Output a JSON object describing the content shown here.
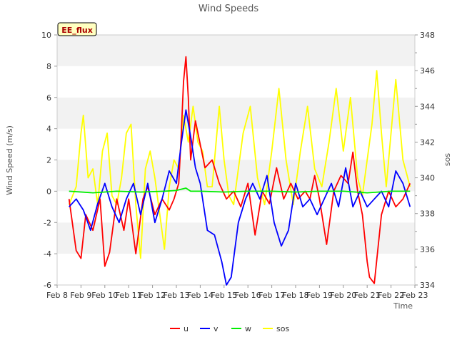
{
  "chart_data": {
    "type": "line",
    "title": "Wind Speeds",
    "xlabel": "Time",
    "ylabel": "Wind Speed (m/s)",
    "y2label": "sos",
    "badge": "EE_flux",
    "x_ticks": [
      "Feb 8",
      "Feb 9",
      "Feb 10",
      "Feb 11",
      "Feb 12",
      "Feb 13",
      "Feb 14",
      "Feb 15",
      "Feb 16",
      "Feb 17",
      "Feb 18",
      "Feb 19",
      "Feb 20",
      "Feb 21",
      "Feb 22",
      "Feb 23"
    ],
    "xlim": [
      8,
      23
    ],
    "ylim": [
      -6,
      10
    ],
    "y_ticks": [
      -6,
      -4,
      -2,
      0,
      2,
      4,
      6,
      8,
      10
    ],
    "y2lim": [
      334,
      348
    ],
    "y2_ticks": [
      334,
      336,
      338,
      340,
      342,
      344,
      346,
      348
    ],
    "grid": "horizontal bands",
    "legend": "bottom-center",
    "series": [
      {
        "name": "u",
        "axis": "left",
        "color": "#ff0000",
        "x": [
          8.5,
          8.8,
          9.0,
          9.2,
          9.5,
          9.8,
          10.0,
          10.2,
          10.5,
          10.8,
          11.0,
          11.3,
          11.6,
          11.8,
          12.1,
          12.4,
          12.7,
          12.9,
          13.1,
          13.2,
          13.3,
          13.4,
          13.5,
          13.6,
          13.8,
          14.0,
          14.2,
          14.5,
          14.8,
          15.1,
          15.4,
          15.7,
          16.0,
          16.3,
          16.6,
          16.9,
          17.2,
          17.5,
          17.8,
          18.1,
          18.4,
          18.6,
          18.8,
          19.0,
          19.3,
          19.6,
          19.9,
          20.2,
          20.4,
          20.6,
          20.8,
          20.9,
          21.0,
          21.1,
          21.3,
          21.6,
          21.9,
          22.2,
          22.5,
          22.8
        ],
        "y": [
          -0.5,
          -3.8,
          -4.3,
          -1.5,
          -2.5,
          -0.5,
          -4.8,
          -3.9,
          -0.5,
          -2.5,
          -0.5,
          -4.0,
          -0.5,
          0.3,
          -1.5,
          -0.5,
          -1.2,
          -0.5,
          0.5,
          3.5,
          7.0,
          8.6,
          6.0,
          2.0,
          4.5,
          3.0,
          1.5,
          2.0,
          0.5,
          -0.5,
          0.0,
          -1.0,
          0.5,
          -2.8,
          0.0,
          -0.8,
          1.5,
          -0.5,
          0.5,
          -0.5,
          0.0,
          -0.5,
          1.0,
          -0.5,
          -3.4,
          0.0,
          1.0,
          0.5,
          2.5,
          0.0,
          -1.5,
          -3.0,
          -4.5,
          -5.5,
          -5.9,
          -1.5,
          0.0,
          -1.0,
          -0.5,
          0.5
        ]
      },
      {
        "name": "v",
        "axis": "left",
        "color": "#0000ff",
        "x": [
          8.5,
          8.8,
          9.1,
          9.4,
          9.7,
          10.0,
          10.3,
          10.6,
          10.9,
          11.2,
          11.5,
          11.8,
          12.1,
          12.4,
          12.7,
          13.0,
          13.2,
          13.4,
          13.6,
          13.8,
          14.0,
          14.3,
          14.6,
          14.9,
          15.1,
          15.3,
          15.6,
          15.9,
          16.2,
          16.5,
          16.8,
          17.1,
          17.4,
          17.7,
          18.0,
          18.3,
          18.6,
          18.9,
          19.2,
          19.5,
          19.8,
          20.1,
          20.4,
          20.7,
          21.0,
          21.3,
          21.6,
          21.9,
          22.2,
          22.5,
          22.8
        ],
        "y": [
          -1.0,
          -0.5,
          -1.2,
          -2.5,
          -0.8,
          0.5,
          -1.0,
          -2.0,
          -0.5,
          0.5,
          -1.5,
          0.5,
          -2.0,
          -0.5,
          1.3,
          0.5,
          3.0,
          5.2,
          3.5,
          1.5,
          0.5,
          -2.5,
          -2.8,
          -4.5,
          -6.0,
          -5.5,
          -2.0,
          -0.5,
          0.5,
          -0.5,
          1.0,
          -2.0,
          -3.5,
          -2.5,
          0.5,
          -1.0,
          -0.5,
          -1.5,
          -0.5,
          0.5,
          -1.0,
          1.5,
          -1.0,
          0.0,
          -1.0,
          -0.5,
          0.0,
          -1.0,
          1.3,
          0.5,
          -1.0
        ]
      },
      {
        "name": "w",
        "axis": "left",
        "color": "#00ee00",
        "x": [
          8.5,
          9.5,
          10.5,
          11.5,
          12.5,
          13.0,
          13.4,
          13.6,
          14.0,
          15.0,
          16.0,
          17.0,
          18.0,
          19.0,
          20.0,
          21.0,
          22.0,
          22.8
        ],
        "y": [
          0.0,
          -0.1,
          0.0,
          -0.05,
          0.0,
          0.05,
          0.2,
          0.0,
          0.0,
          -0.05,
          0.0,
          0.0,
          -0.05,
          0.0,
          0.0,
          -0.1,
          0.0,
          0.0
        ]
      },
      {
        "name": "sos",
        "axis": "right",
        "color": "#ffff00",
        "x": [
          8.5,
          8.8,
          9.0,
          9.1,
          9.3,
          9.5,
          9.7,
          9.9,
          10.1,
          10.3,
          10.5,
          10.7,
          10.9,
          11.1,
          11.3,
          11.5,
          11.7,
          11.9,
          12.1,
          12.3,
          12.5,
          12.7,
          12.9,
          13.1,
          13.3,
          13.5,
          13.7,
          13.9,
          14.1,
          14.3,
          14.5,
          14.8,
          15.0,
          15.2,
          15.4,
          15.6,
          15.8,
          16.1,
          16.4,
          16.7,
          17.0,
          17.3,
          17.6,
          17.9,
          18.2,
          18.5,
          18.8,
          19.1,
          19.4,
          19.7,
          20.0,
          20.3,
          20.6,
          20.8,
          21.0,
          21.2,
          21.4,
          21.6,
          21.8,
          22.0,
          22.2,
          22.5,
          22.8
        ],
        "y": [
          338.5,
          339.5,
          342.5,
          343.5,
          340.0,
          340.5,
          338.5,
          341.5,
          342.5,
          339.0,
          338.5,
          340.0,
          342.5,
          343.0,
          338.5,
          335.5,
          340.5,
          341.5,
          340.0,
          338.0,
          336.0,
          339.5,
          341.0,
          340.5,
          343.5,
          342.0,
          344.0,
          342.0,
          341.5,
          339.5,
          339.5,
          344.0,
          341.0,
          339.0,
          338.5,
          340.5,
          342.5,
          344.0,
          340.0,
          338.5,
          341.5,
          345.0,
          341.0,
          338.5,
          341.5,
          344.0,
          340.5,
          339.5,
          342.0,
          345.0,
          341.5,
          344.5,
          340.0,
          339.0,
          341.0,
          343.0,
          346.0,
          342.5,
          339.5,
          342.5,
          345.5,
          341.0,
          339.5
        ]
      }
    ]
  }
}
